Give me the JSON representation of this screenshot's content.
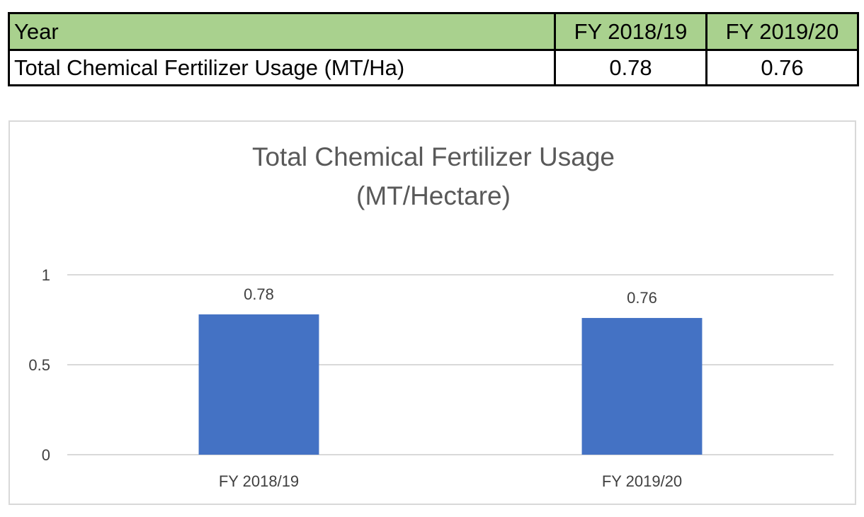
{
  "table": {
    "header": {
      "label": "Year",
      "years": [
        "FY 2018/19",
        "FY 2019/20"
      ]
    },
    "row": {
      "label": "Total Chemical Fertilizer Usage (MT/Ha)",
      "values": [
        "0.78",
        "0.76"
      ]
    },
    "header_color": "#a9d18e"
  },
  "chart_data": {
    "type": "bar",
    "title": "Total Chemical Fertilizer Usage",
    "subtitle": "(MT/Hectare)",
    "categories": [
      "FY 2018/19",
      "FY 2019/20"
    ],
    "values": [
      0.78,
      0.76
    ],
    "data_labels": [
      "0.78",
      "0.76"
    ],
    "yticks": [
      "0",
      "0.5",
      "1"
    ],
    "ylim": [
      0,
      1
    ],
    "grid": true,
    "legend": "none",
    "bar_color": "#4472c4",
    "grid_color": "#d9d9d9"
  }
}
